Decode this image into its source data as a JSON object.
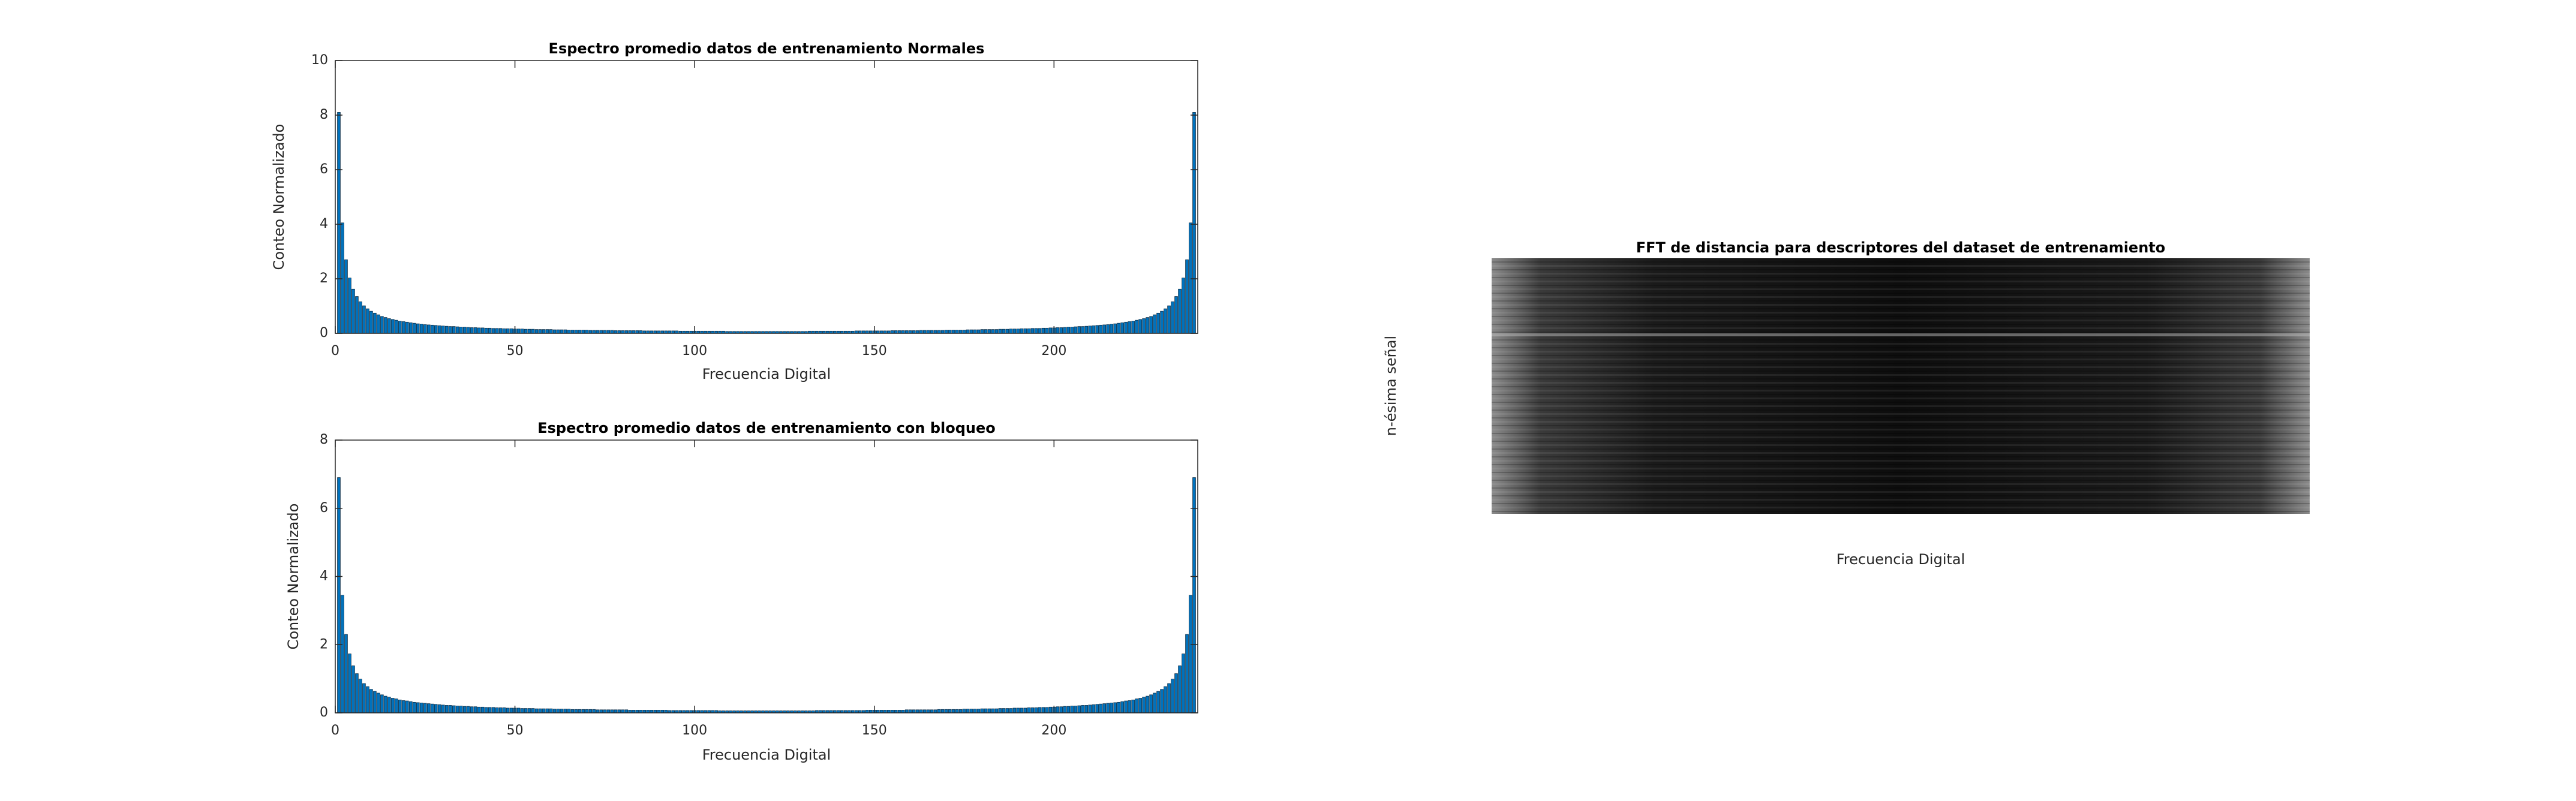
{
  "chart_data": [
    {
      "type": "bar",
      "title": "Espectro promedio datos de entrenamiento Normales",
      "xlabel": "Frecuencia Digital",
      "ylabel": "Conteo Normalizado",
      "color": "#0072bd",
      "xlim": [
        0,
        240
      ],
      "xticks": [
        0,
        50,
        100,
        150,
        200
      ],
      "ylim": [
        0,
        10
      ],
      "yticks": [
        0,
        2,
        4,
        6,
        8,
        10
      ],
      "x": [
        1,
        2,
        3,
        4,
        5,
        6,
        7,
        8,
        9,
        10,
        11,
        12,
        13,
        14,
        15,
        16,
        17,
        18,
        19,
        20,
        21,
        22,
        23,
        24,
        25,
        26,
        27,
        28,
        29,
        30,
        31,
        32,
        33,
        34,
        35,
        36,
        37,
        38,
        39,
        40,
        41,
        42,
        43,
        44,
        45,
        46,
        47,
        48,
        49,
        50,
        51,
        52,
        53,
        54,
        55,
        56,
        57,
        58,
        59,
        60,
        61,
        62,
        63,
        64,
        65,
        66,
        67,
        68,
        69,
        70,
        71,
        72,
        73,
        74,
        75,
        76,
        77,
        78,
        79,
        80,
        81,
        82,
        83,
        84,
        85,
        86,
        87,
        88,
        89,
        90,
        91,
        92,
        93,
        94,
        95,
        96,
        97,
        98,
        99,
        100,
        101,
        102,
        103,
        104,
        105,
        106,
        107,
        108,
        109,
        110,
        111,
        112,
        113,
        114,
        115,
        116,
        117,
        118,
        119,
        120,
        121,
        122,
        123,
        124,
        125,
        126,
        127,
        128,
        129,
        130,
        131,
        132,
        133,
        134,
        135,
        136,
        137,
        138,
        139,
        140,
        141,
        142,
        143,
        144,
        145,
        146,
        147,
        148,
        149,
        150,
        151,
        152,
        153,
        154,
        155,
        156,
        157,
        158,
        159,
        160,
        161,
        162,
        163,
        164,
        165,
        166,
        167,
        168,
        169,
        170,
        171,
        172,
        173,
        174,
        175,
        176,
        177,
        178,
        179,
        180,
        181,
        182,
        183,
        184,
        185,
        186,
        187,
        188,
        189,
        190,
        191,
        192,
        193,
        194,
        195,
        196,
        197,
        198,
        199,
        200,
        201,
        202,
        203,
        204,
        205,
        206,
        207,
        208,
        209,
        210,
        211,
        212,
        213,
        214,
        215,
        216,
        217,
        218,
        219,
        220,
        221,
        222,
        223,
        224,
        225,
        226,
        227,
        228,
        229,
        230,
        231,
        232,
        233,
        234,
        235,
        236,
        237,
        238,
        239
      ],
      "values": [
        8.1,
        4.05,
        2.7,
        2.03,
        1.62,
        1.35,
        1.16,
        1.01,
        0.9,
        0.81,
        0.74,
        0.68,
        0.62,
        0.58,
        0.54,
        0.51,
        0.48,
        0.45,
        0.43,
        0.41,
        0.39,
        0.37,
        0.35,
        0.34,
        0.32,
        0.31,
        0.3,
        0.29,
        0.28,
        0.27,
        0.26,
        0.25,
        0.25,
        0.24,
        0.23,
        0.23,
        0.22,
        0.21,
        0.21,
        0.2,
        0.2,
        0.19,
        0.19,
        0.18,
        0.18,
        0.18,
        0.17,
        0.17,
        0.17,
        0.16,
        0.16,
        0.16,
        0.15,
        0.15,
        0.15,
        0.14,
        0.14,
        0.14,
        0.14,
        0.14,
        0.13,
        0.13,
        0.13,
        0.13,
        0.12,
        0.12,
        0.12,
        0.12,
        0.12,
        0.12,
        0.11,
        0.11,
        0.11,
        0.11,
        0.11,
        0.11,
        0.11,
        0.1,
        0.1,
        0.1,
        0.1,
        0.1,
        0.1,
        0.1,
        0.1,
        0.09,
        0.09,
        0.09,
        0.09,
        0.09,
        0.09,
        0.09,
        0.09,
        0.09,
        0.09,
        0.08,
        0.08,
        0.08,
        0.08,
        0.08,
        0.08,
        0.08,
        0.08,
        0.08,
        0.08,
        0.08,
        0.08,
        0.08,
        0.07,
        0.07,
        0.07,
        0.07,
        0.07,
        0.07,
        0.07,
        0.07,
        0.07,
        0.07,
        0.07,
        0.07,
        0.07,
        0.07,
        0.07,
        0.07,
        0.07,
        0.07,
        0.07,
        0.07,
        0.07,
        0.07,
        0.07,
        0.08,
        0.08,
        0.08,
        0.08,
        0.08,
        0.08,
        0.08,
        0.08,
        0.08,
        0.08,
        0.08,
        0.08,
        0.08,
        0.09,
        0.09,
        0.09,
        0.09,
        0.09,
        0.09,
        0.09,
        0.09,
        0.09,
        0.09,
        0.1,
        0.1,
        0.1,
        0.1,
        0.1,
        0.1,
        0.1,
        0.1,
        0.11,
        0.11,
        0.11,
        0.11,
        0.11,
        0.11,
        0.11,
        0.12,
        0.12,
        0.12,
        0.12,
        0.12,
        0.12,
        0.13,
        0.13,
        0.13,
        0.13,
        0.14,
        0.14,
        0.14,
        0.14,
        0.14,
        0.15,
        0.15,
        0.15,
        0.16,
        0.16,
        0.16,
        0.17,
        0.17,
        0.17,
        0.18,
        0.18,
        0.18,
        0.19,
        0.19,
        0.2,
        0.2,
        0.21,
        0.21,
        0.22,
        0.23,
        0.23,
        0.24,
        0.25,
        0.25,
        0.26,
        0.27,
        0.28,
        0.29,
        0.3,
        0.31,
        0.32,
        0.34,
        0.35,
        0.37,
        0.39,
        0.41,
        0.43,
        0.45,
        0.48,
        0.51,
        0.54,
        0.58,
        0.62,
        0.68,
        0.74,
        0.81,
        0.9,
        1.01,
        1.16,
        1.35,
        1.62,
        2.03,
        2.7,
        4.05,
        8.1
      ]
    },
    {
      "type": "bar",
      "title": "Espectro promedio datos de entrenamiento con bloqueo",
      "xlabel": "Frecuencia Digital",
      "ylabel": "Conteo Normalizado",
      "color": "#0072bd",
      "xlim": [
        0,
        240
      ],
      "xticks": [
        0,
        50,
        100,
        150,
        200
      ],
      "ylim": [
        0,
        8
      ],
      "yticks": [
        0,
        2,
        4,
        6,
        8
      ],
      "x": [
        1,
        2,
        3,
        4,
        5,
        6,
        7,
        8,
        9,
        10,
        11,
        12,
        13,
        14,
        15,
        16,
        17,
        18,
        19,
        20,
        21,
        22,
        23,
        24,
        25,
        26,
        27,
        28,
        29,
        30,
        31,
        32,
        33,
        34,
        35,
        36,
        37,
        38,
        39,
        40,
        41,
        42,
        43,
        44,
        45,
        46,
        47,
        48,
        49,
        50,
        51,
        52,
        53,
        54,
        55,
        56,
        57,
        58,
        59,
        60,
        61,
        62,
        63,
        64,
        65,
        66,
        67,
        68,
        69,
        70,
        71,
        72,
        73,
        74,
        75,
        76,
        77,
        78,
        79,
        80,
        81,
        82,
        83,
        84,
        85,
        86,
        87,
        88,
        89,
        90,
        91,
        92,
        93,
        94,
        95,
        96,
        97,
        98,
        99,
        100,
        101,
        102,
        103,
        104,
        105,
        106,
        107,
        108,
        109,
        110,
        111,
        112,
        113,
        114,
        115,
        116,
        117,
        118,
        119,
        120,
        121,
        122,
        123,
        124,
        125,
        126,
        127,
        128,
        129,
        130,
        131,
        132,
        133,
        134,
        135,
        136,
        137,
        138,
        139,
        140,
        141,
        142,
        143,
        144,
        145,
        146,
        147,
        148,
        149,
        150,
        151,
        152,
        153,
        154,
        155,
        156,
        157,
        158,
        159,
        160,
        161,
        162,
        163,
        164,
        165,
        166,
        167,
        168,
        169,
        170,
        171,
        172,
        173,
        174,
        175,
        176,
        177,
        178,
        179,
        180,
        181,
        182,
        183,
        184,
        185,
        186,
        187,
        188,
        189,
        190,
        191,
        192,
        193,
        194,
        195,
        196,
        197,
        198,
        199,
        200,
        201,
        202,
        203,
        204,
        205,
        206,
        207,
        208,
        209,
        210,
        211,
        212,
        213,
        214,
        215,
        216,
        217,
        218,
        219,
        220,
        221,
        222,
        223,
        224,
        225,
        226,
        227,
        228,
        229,
        230,
        231,
        232,
        233,
        234,
        235,
        236,
        237,
        238,
        239
      ],
      "values": [
        6.9,
        3.45,
        2.3,
        1.73,
        1.38,
        1.15,
        0.99,
        0.86,
        0.77,
        0.69,
        0.63,
        0.58,
        0.53,
        0.49,
        0.46,
        0.43,
        0.41,
        0.38,
        0.36,
        0.35,
        0.33,
        0.31,
        0.3,
        0.29,
        0.28,
        0.27,
        0.26,
        0.25,
        0.24,
        0.23,
        0.22,
        0.22,
        0.21,
        0.2,
        0.2,
        0.19,
        0.19,
        0.18,
        0.18,
        0.17,
        0.17,
        0.16,
        0.16,
        0.16,
        0.15,
        0.15,
        0.15,
        0.14,
        0.14,
        0.14,
        0.14,
        0.13,
        0.13,
        0.13,
        0.13,
        0.12,
        0.12,
        0.12,
        0.12,
        0.12,
        0.11,
        0.11,
        0.11,
        0.11,
        0.11,
        0.1,
        0.1,
        0.1,
        0.1,
        0.1,
        0.1,
        0.1,
        0.09,
        0.09,
        0.09,
        0.09,
        0.09,
        0.09,
        0.09,
        0.09,
        0.09,
        0.08,
        0.08,
        0.08,
        0.08,
        0.08,
        0.08,
        0.08,
        0.08,
        0.08,
        0.08,
        0.08,
        0.07,
        0.07,
        0.07,
        0.07,
        0.07,
        0.07,
        0.07,
        0.07,
        0.07,
        0.07,
        0.07,
        0.07,
        0.07,
        0.07,
        0.06,
        0.06,
        0.06,
        0.06,
        0.06,
        0.06,
        0.06,
        0.06,
        0.06,
        0.06,
        0.06,
        0.06,
        0.06,
        0.06,
        0.06,
        0.06,
        0.06,
        0.06,
        0.06,
        0.06,
        0.06,
        0.06,
        0.06,
        0.06,
        0.06,
        0.06,
        0.06,
        0.07,
        0.07,
        0.07,
        0.07,
        0.07,
        0.07,
        0.07,
        0.07,
        0.07,
        0.07,
        0.07,
        0.07,
        0.07,
        0.07,
        0.08,
        0.08,
        0.08,
        0.08,
        0.08,
        0.08,
        0.08,
        0.08,
        0.08,
        0.08,
        0.08,
        0.09,
        0.09,
        0.09,
        0.09,
        0.09,
        0.09,
        0.09,
        0.09,
        0.09,
        0.1,
        0.1,
        0.1,
        0.1,
        0.1,
        0.1,
        0.1,
        0.11,
        0.11,
        0.11,
        0.11,
        0.11,
        0.12,
        0.12,
        0.12,
        0.12,
        0.12,
        0.13,
        0.13,
        0.13,
        0.13,
        0.14,
        0.14,
        0.14,
        0.14,
        0.15,
        0.15,
        0.15,
        0.16,
        0.16,
        0.16,
        0.17,
        0.17,
        0.18,
        0.18,
        0.19,
        0.19,
        0.2,
        0.2,
        0.21,
        0.22,
        0.22,
        0.23,
        0.24,
        0.25,
        0.26,
        0.27,
        0.28,
        0.29,
        0.3,
        0.31,
        0.33,
        0.35,
        0.36,
        0.38,
        0.41,
        0.43,
        0.46,
        0.49,
        0.53,
        0.58,
        0.63,
        0.69,
        0.77,
        0.86,
        0.99,
        1.15,
        1.38,
        1.73,
        2.3,
        3.45,
        6.9
      ]
    },
    {
      "type": "heatmap",
      "title": "FFT de distancia para descriptores del dataset de entrenamiento",
      "xlabel": "Frecuencia Digital",
      "ylabel": "n-ésima señal"
    }
  ]
}
